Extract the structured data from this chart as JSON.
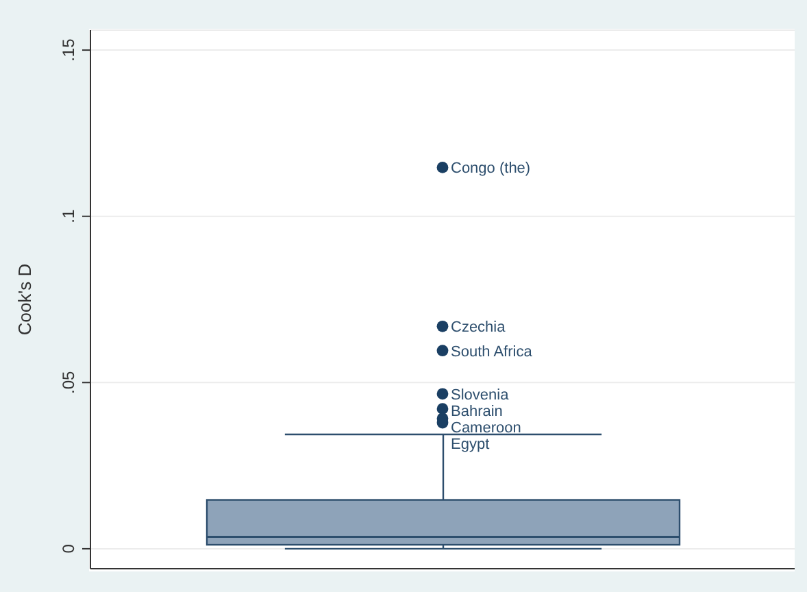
{
  "chart_data": {
    "type": "box",
    "ylabel": "Cook's D",
    "categories": [
      null
    ],
    "color": "#8ea3b9",
    "boxes": [
      {
        "low": 0,
        "q1": 0.0012,
        "median": 0.0036,
        "q3": 0.0147,
        "high": 0.0344,
        "outliers": [
          0.1147,
          0.0669,
          0.0596,
          0.0466,
          0.0421,
          0.0392,
          0.0379
        ]
      }
    ],
    "annotations": [
      "Congo (the)",
      "Czechia",
      "South Africa",
      "Slovenia",
      "Bahrain",
      "Cameroon",
      "Egypt"
    ],
    "ylim": [
      -0.006,
      0.156
    ],
    "yticks": [
      {
        "value": 0,
        "label": "0"
      },
      {
        "value": 0.05,
        "label": ".05"
      },
      {
        "value": 0.1,
        "label": ".1"
      },
      {
        "value": 0.15,
        "label": ".15"
      }
    ],
    "grid": "y",
    "legend": false,
    "marker": "circle"
  }
}
